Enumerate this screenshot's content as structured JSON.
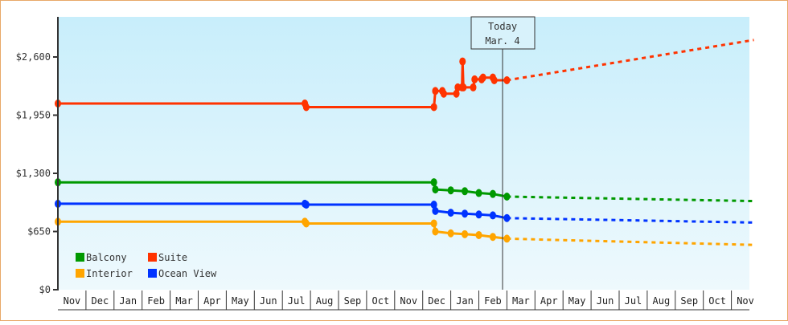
{
  "chart_data": {
    "type": "line",
    "title": "",
    "xlabel": "",
    "ylabel": "",
    "ylim": [
      0,
      2900
    ],
    "y_ticks": [
      {
        "value": 0,
        "label": "$0"
      },
      {
        "value": 650,
        "label": "$650"
      },
      {
        "value": 1300,
        "label": "$1,300"
      },
      {
        "value": 1950,
        "label": "$1,950"
      },
      {
        "value": 2600,
        "label": "$2,600"
      }
    ],
    "x_categories": [
      "Nov",
      "Dec",
      "Jan",
      "Feb",
      "Mar",
      "Apr",
      "May",
      "Jun",
      "Jul",
      "Aug",
      "Sep",
      "Oct",
      "Nov",
      "Dec",
      "Jan",
      "Feb",
      "Mar",
      "Apr",
      "May",
      "Jun",
      "Jul",
      "Aug",
      "Sep",
      "Oct",
      "Nov"
    ],
    "today_marker": {
      "line1": "Today",
      "line2": "Mar. 4",
      "x_month_index": 15.1
    },
    "legend": [
      {
        "name": "Balcony",
        "color": "#009900"
      },
      {
        "name": "Suite",
        "color": "#ff3300"
      },
      {
        "name": "Interior",
        "color": "#ffa500"
      },
      {
        "name": "Ocean View",
        "color": "#0033ff"
      }
    ],
    "series": [
      {
        "name": "Suite",
        "color": "#ff3300",
        "historical": [
          [
            0,
            2080
          ],
          [
            8.8,
            2080
          ],
          [
            8.85,
            2040
          ],
          [
            13.4,
            2040
          ],
          [
            13.45,
            2220
          ],
          [
            13.7,
            2220
          ],
          [
            13.75,
            2190
          ],
          [
            14.2,
            2190
          ],
          [
            14.25,
            2260
          ],
          [
            14.4,
            2260
          ],
          [
            14.42,
            2550
          ],
          [
            14.45,
            2260
          ],
          [
            14.8,
            2260
          ],
          [
            14.85,
            2350
          ],
          [
            15.1,
            2350
          ],
          [
            15.15,
            2370
          ],
          [
            15.5,
            2370
          ],
          [
            15.55,
            2340
          ],
          [
            16.0,
            2340
          ]
        ],
        "forecast": [
          [
            16.0,
            2340
          ],
          [
            24.8,
            2790
          ]
        ]
      },
      {
        "name": "Balcony",
        "color": "#009900",
        "historical": [
          [
            0,
            1200
          ],
          [
            13.4,
            1200
          ],
          [
            13.45,
            1120
          ],
          [
            14.0,
            1110
          ],
          [
            14.5,
            1100
          ],
          [
            15.0,
            1080
          ],
          [
            15.5,
            1070
          ],
          [
            16.0,
            1040
          ]
        ],
        "forecast": [
          [
            16.0,
            1040
          ],
          [
            24.8,
            990
          ]
        ]
      },
      {
        "name": "Ocean View",
        "color": "#0033ff",
        "historical": [
          [
            0,
            960
          ],
          [
            8.8,
            960
          ],
          [
            8.85,
            950
          ],
          [
            13.4,
            950
          ],
          [
            13.45,
            880
          ],
          [
            14.0,
            860
          ],
          [
            14.5,
            850
          ],
          [
            15.0,
            840
          ],
          [
            15.5,
            830
          ],
          [
            16.0,
            800
          ]
        ],
        "forecast": [
          [
            16.0,
            800
          ],
          [
            24.8,
            750
          ]
        ]
      },
      {
        "name": "Interior",
        "color": "#ffa500",
        "historical": [
          [
            0,
            760
          ],
          [
            8.8,
            760
          ],
          [
            8.85,
            740
          ],
          [
            13.4,
            740
          ],
          [
            13.45,
            650
          ],
          [
            14.0,
            630
          ],
          [
            14.5,
            620
          ],
          [
            15.0,
            610
          ],
          [
            15.5,
            590
          ],
          [
            16.0,
            570
          ]
        ],
        "forecast": [
          [
            16.0,
            570
          ],
          [
            24.8,
            500
          ]
        ]
      }
    ]
  }
}
